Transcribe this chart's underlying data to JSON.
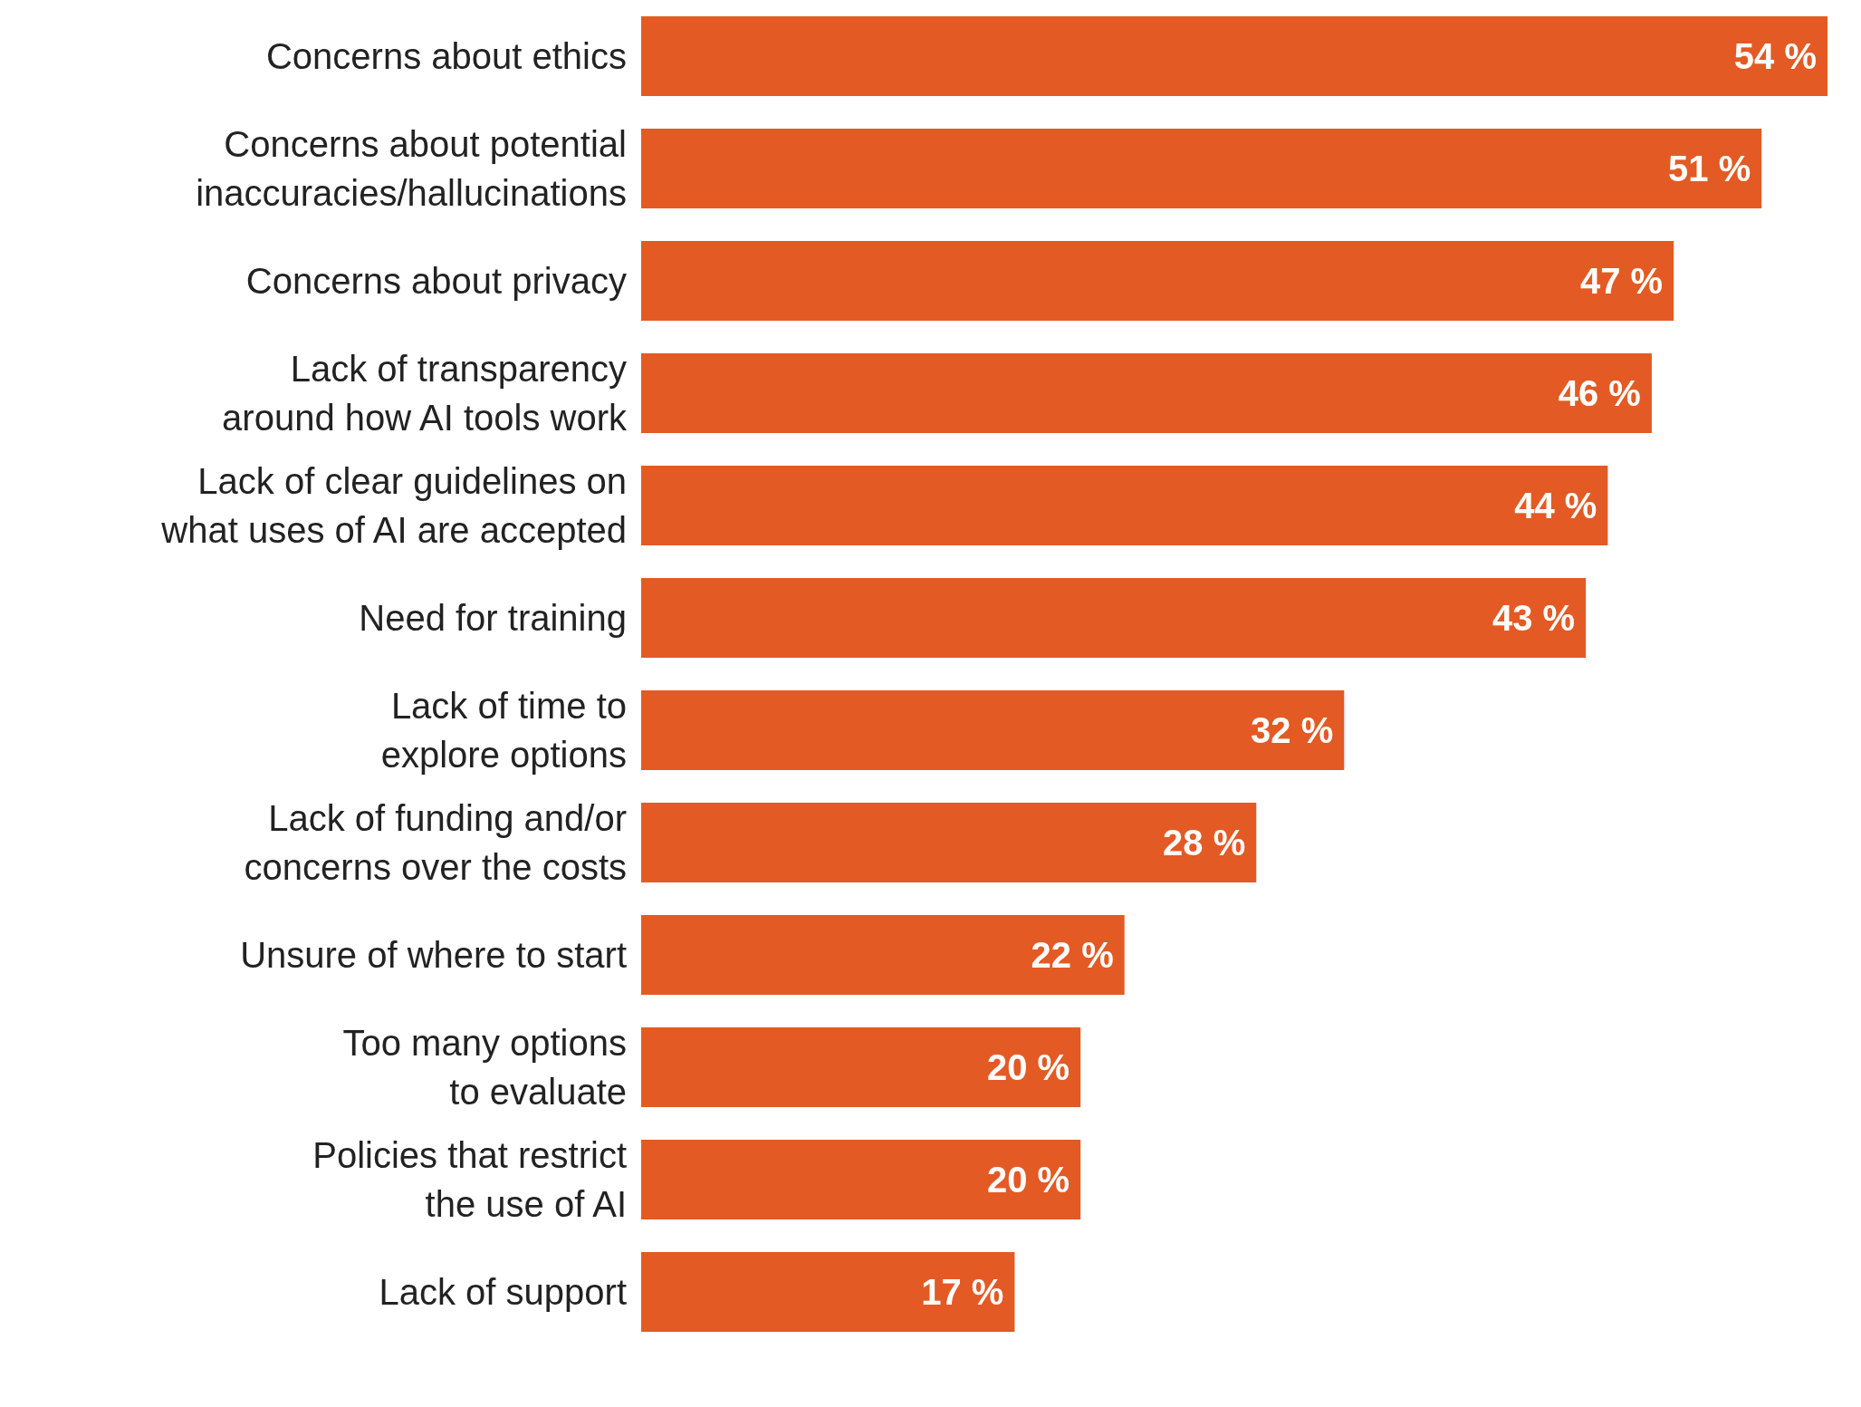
{
  "chart_data": {
    "type": "bar",
    "orientation": "horizontal",
    "color": "#e35a24",
    "categories": [
      "Concerns about ethics",
      "Concerns about potential inaccuracies/hallucinations",
      "Concerns about privacy",
      "Lack of transparency around how AI tools work",
      "Lack of clear guidelines on what uses of AI are accepted",
      "Need for training",
      "Lack of time to explore options",
      "Lack of funding and/or concerns over the costs",
      "Unsure of where to start",
      "Too many options to evaluate",
      "Policies that restrict the use of AI",
      "Lack of support"
    ],
    "values": [
      54,
      51,
      47,
      46,
      44,
      43,
      32,
      28,
      22,
      20,
      20,
      17
    ],
    "value_labels": [
      "54 %",
      "51 %",
      "47 %",
      "46 %",
      "44 %",
      "43 %",
      "32 %",
      "28 %",
      "22 %",
      "20 %",
      "20 %",
      "17 %"
    ]
  }
}
